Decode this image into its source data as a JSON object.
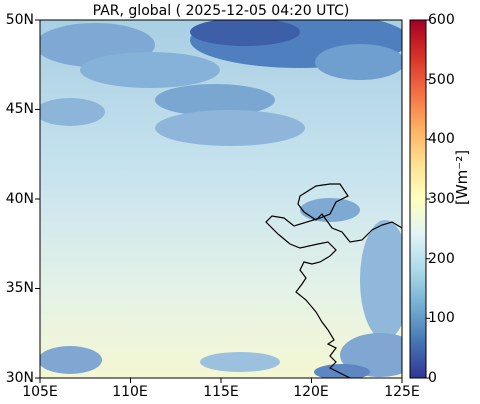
{
  "title": "PAR, global ( 2025-12-05 04:20 UTC)",
  "map": {
    "lat_ticks": [
      "50N",
      "45N",
      "40N",
      "35N",
      "30N"
    ],
    "lon_ticks": [
      "105E",
      "110E",
      "115E",
      "120E",
      "125E"
    ],
    "lat_range": [
      30,
      50
    ],
    "lon_range": [
      105,
      125
    ]
  },
  "colorbar": {
    "ticks": [
      "600",
      "500",
      "400",
      "300",
      "200",
      "100",
      "0"
    ],
    "range": [
      0,
      600
    ],
    "unit_label": "[Wm⁻²]",
    "colormap": [
      "#313695",
      "#4575b4",
      "#74add1",
      "#abd9e9",
      "#e0f3f8",
      "#ffffbf",
      "#fee090",
      "#fdae61",
      "#f46d43",
      "#d73027",
      "#a50026"
    ]
  }
}
